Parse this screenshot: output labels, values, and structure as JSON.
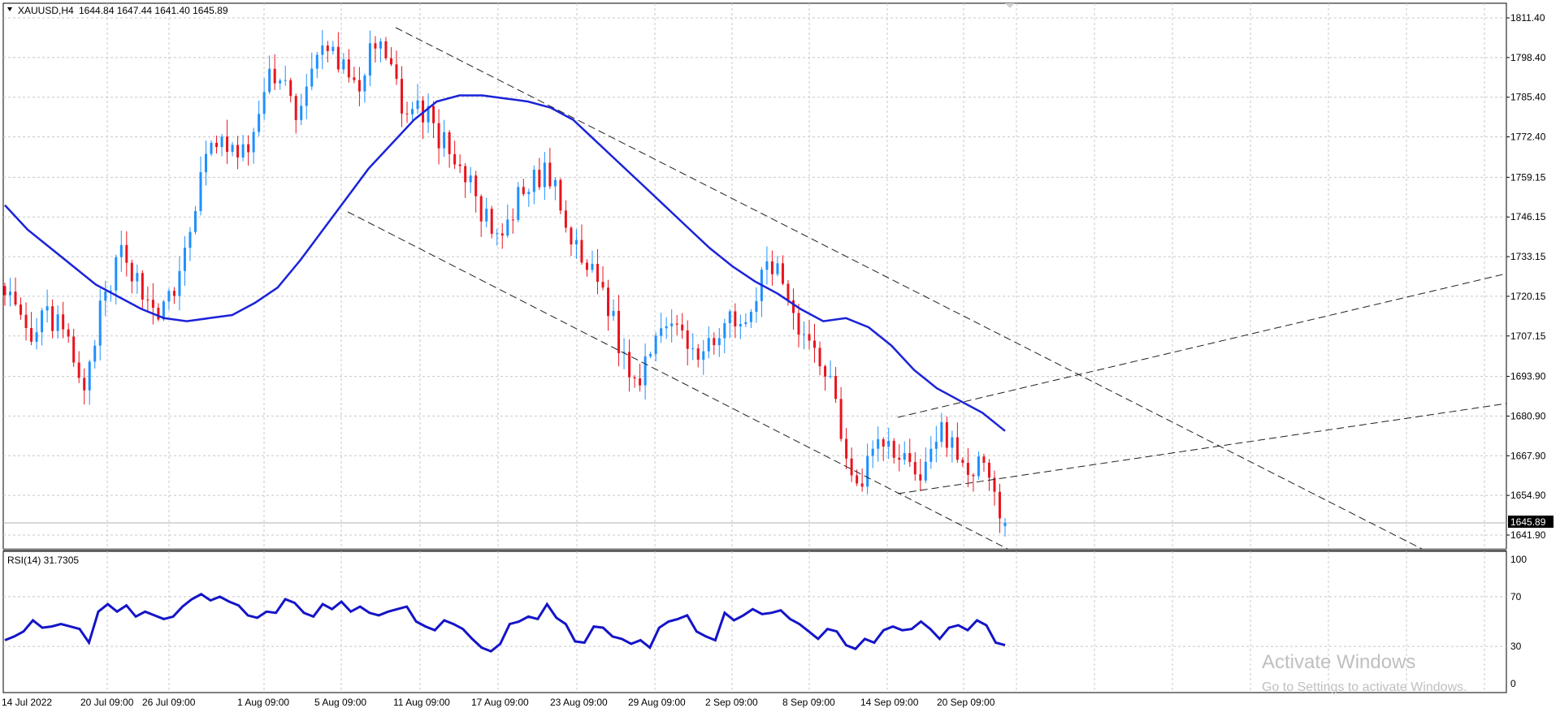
{
  "header": {
    "symbol": "XAUUSD,H4",
    "ohlc": "1644.84 1647.44 1641.40 1645.89"
  },
  "rsi_header": {
    "label": "RSI(14) 31.7305"
  },
  "price_axis": {
    "labels": [
      "1811.40",
      "1798.40",
      "1785.40",
      "1772.40",
      "1759.15",
      "1746.15",
      "1733.15",
      "1720.15",
      "1707.15",
      "1693.90",
      "1680.90",
      "1667.90",
      "1654.90",
      "1641.90"
    ],
    "current_price_label": "1645.89"
  },
  "rsi_axis": {
    "labels": [
      "100",
      "70",
      "30",
      "0"
    ]
  },
  "time_axis": {
    "labels": [
      "14 Jul 2022",
      "20 Jul 09:00",
      "26 Jul 09:00",
      "1 Aug 09:00",
      "5 Aug 09:00",
      "11 Aug 09:00",
      "17 Aug 09:00",
      "23 Aug 09:00",
      "29 Aug 09:00",
      "2 Sep 09:00",
      "8 Sep 09:00",
      "14 Sep 09:00",
      "20 Sep 09:00"
    ]
  },
  "watermark": {
    "line1": "Activate Windows",
    "line2": "Go to Settings to activate Windows."
  },
  "colors": {
    "bull": "#1e90ff",
    "bear": "#e8141e",
    "ma": "#1a23d8",
    "rsi": "#1414c8",
    "grid": "#c8c8c8",
    "axis_text": "#000000"
  },
  "chart_data": [
    {
      "type": "candlestick",
      "title": "XAUUSD,H4",
      "timeframe": "H4",
      "ylim": [
        1638.5,
        1814.5
      ],
      "x": [
        "14 Jul 2022",
        "20 Jul 09:00",
        "26 Jul 09:00",
        "1 Aug 09:00",
        "5 Aug 09:00",
        "11 Aug 09:00",
        "17 Aug 09:00",
        "23 Aug 09:00",
        "29 Aug 09:00",
        "2 Sep 09:00",
        "8 Sep 09:00",
        "14 Sep 09:00",
        "20 Sep 09:00"
      ],
      "close_path": [
        1725,
        1712,
        1702,
        1715,
        1710,
        1703,
        1685,
        1712,
        1722,
        1738,
        1725,
        1718,
        1715,
        1722,
        1742,
        1760,
        1772,
        1768,
        1765,
        1775,
        1790,
        1795,
        1780,
        1788,
        1800,
        1800,
        1793,
        1790,
        1802,
        1797,
        1785,
        1780,
        1782,
        1771,
        1768,
        1758,
        1751,
        1740,
        1738,
        1752,
        1756,
        1762,
        1752,
        1738,
        1730,
        1728,
        1715,
        1700,
        1690,
        1705,
        1712,
        1715,
        1705,
        1697,
        1710,
        1712,
        1706,
        1720,
        1730,
        1727,
        1715,
        1705,
        1700,
        1690,
        1666,
        1660,
        1672,
        1670,
        1668,
        1665,
        1662,
        1678,
        1670,
        1660,
        1668,
        1655,
        1646
      ],
      "last": {
        "open": 1644.84,
        "high": 1647.44,
        "low": 1641.4,
        "close": 1645.89
      },
      "moving_average_path": [
        1750,
        1742,
        1736,
        1730,
        1724,
        1720,
        1716,
        1713,
        1712,
        1713,
        1714,
        1718,
        1723,
        1732,
        1742,
        1752,
        1762,
        1770,
        1778,
        1784,
        1786,
        1786,
        1785,
        1784,
        1782,
        1778,
        1771,
        1764,
        1757,
        1750,
        1743,
        1736,
        1730,
        1725,
        1721,
        1716,
        1712,
        1713,
        1710,
        1704,
        1696,
        1690,
        1686,
        1682,
        1676
      ],
      "current_price_line": 1645.89
    },
    {
      "type": "line",
      "title": "RSI(14) 31.7305",
      "ylim": [
        0,
        100
      ],
      "levels": [
        70,
        30
      ],
      "series": [
        {
          "name": "RSI(14)",
          "values": [
            35,
            38,
            42,
            51,
            45,
            46,
            48,
            46,
            44,
            33,
            58,
            64,
            58,
            63,
            54,
            58,
            55,
            52,
            54,
            62,
            68,
            72,
            67,
            70,
            66,
            63,
            55,
            53,
            58,
            57,
            68,
            65,
            57,
            54,
            64,
            60,
            66,
            58,
            62,
            57,
            55,
            58,
            60,
            62,
            50,
            46,
            43,
            51,
            48,
            44,
            36,
            29,
            26,
            32,
            48,
            50,
            54,
            52,
            64,
            53,
            48,
            34,
            33,
            46,
            45,
            38,
            36,
            32,
            35,
            29,
            45,
            50,
            52,
            55,
            42,
            38,
            35,
            57,
            51,
            55,
            60,
            56,
            57,
            59,
            52,
            48,
            42,
            36,
            44,
            42,
            31,
            28,
            36,
            33,
            43,
            46,
            43,
            44,
            50,
            44,
            36,
            45,
            47,
            43,
            51,
            47,
            33,
            31
          ]
        }
      ]
    }
  ]
}
